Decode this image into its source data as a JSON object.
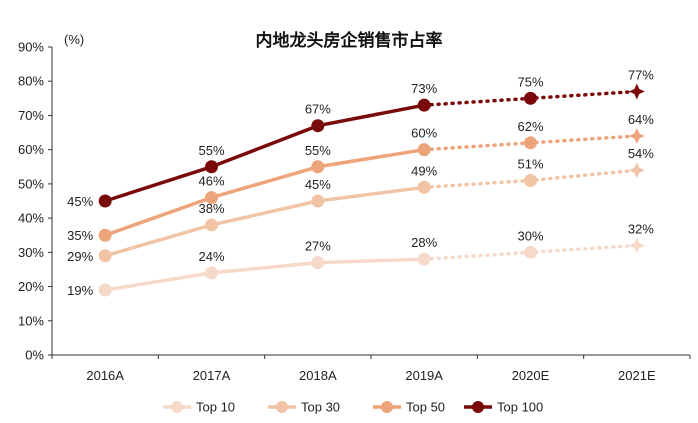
{
  "chart_data": {
    "type": "line",
    "title": "内地龙头房企销售市占率",
    "ylabel_unit": "(%)",
    "categories": [
      "2016A",
      "2017A",
      "2018A",
      "2019A",
      "2020E",
      "2021E"
    ],
    "y_ticks": [
      "0%",
      "10%",
      "20%",
      "30%",
      "40%",
      "50%",
      "60%",
      "70%",
      "80%",
      "90%"
    ],
    "ylim": [
      0,
      90
    ],
    "grid": false,
    "legend_position": "bottom",
    "actual_through_index": 3,
    "series": [
      {
        "name": "Top 10",
        "values": [
          19,
          24,
          27,
          28,
          30,
          32
        ],
        "labels": [
          "19%",
          "24%",
          "27%",
          "28%",
          "30%",
          "32%"
        ],
        "color": "#f6d9c8"
      },
      {
        "name": "Top 30",
        "values": [
          29,
          38,
          45,
          49,
          51,
          54
        ],
        "labels": [
          "29%",
          "38%",
          "45%",
          "49%",
          "51%",
          "54%"
        ],
        "color": "#f2c4a6"
      },
      {
        "name": "Top 50",
        "values": [
          35,
          46,
          55,
          60,
          62,
          64
        ],
        "labels": [
          "35%",
          "46%",
          "55%",
          "60%",
          "62%",
          "64%"
        ],
        "color": "#eda47a"
      },
      {
        "name": "Top 100",
        "values": [
          45,
          55,
          67,
          73,
          75,
          77
        ],
        "labels": [
          "45%",
          "55%",
          "67%",
          "73%",
          "75%",
          "77%"
        ],
        "color": "#7a0a0a"
      }
    ]
  }
}
